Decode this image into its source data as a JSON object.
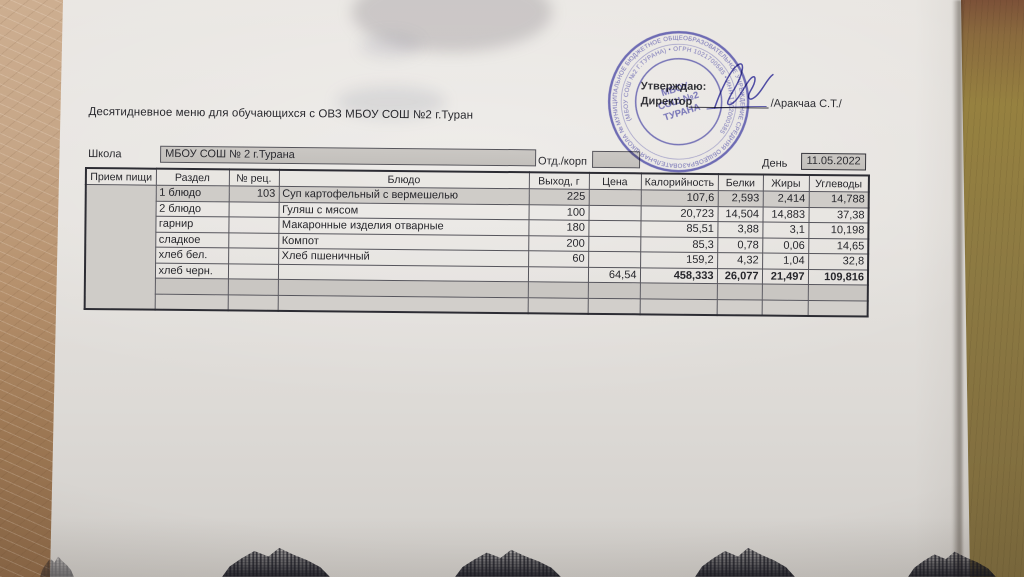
{
  "document": {
    "title": "Десятидневное меню для обучающихся с ОВЗ МБОУ СОШ №2 г.Туран",
    "fields": {
      "school_label": "Школа",
      "school_value": "МБОУ СОШ № 2 г.Турана",
      "dept_label": "Отд./корп",
      "dept_value": "",
      "day_label": "День",
      "day_value": "11.05.2022"
    },
    "approval": {
      "approve_label": "Утверждаю:",
      "director_label": "Директор",
      "signature_name": "/Аракчаа С.Т./"
    },
    "stamp": {
      "ring_text_outer": "МУНИЦИПАЛЬНОЕ БЮДЖЕТНОЕ ОБЩЕОБРАЗОВАТЕЛЬНОЕ УЧРЕЖДЕНИЕ СРЕДНЯЯ ОБЩЕОБРАЗОВАТЕЛЬНАЯ ШКОЛА № 2 ГОРОДА ТУРАНА",
      "ring_text_inner": "(МБОУ СОШ №2 Г.ТУРАНА) • ОГРН 1021700585 • ИНН 1702000385",
      "center_line1": "МБОУ",
      "center_line2": "СОШ №2",
      "center_line3": "ТУРАНА",
      "ink_color": "#4d4aa6"
    },
    "table": {
      "headers": [
        "Прием пищи",
        "Раздел",
        "№ рец.",
        "Блюдо",
        "Выход, г",
        "Цена",
        "Калорийность",
        "Белки",
        "Жиры",
        "Углеводы"
      ],
      "rows": [
        {
          "razdel": "1 блюдо",
          "rec": "103",
          "dish": "Суп картофельный с вермешелью",
          "out": "225",
          "price": "",
          "kcal": "107,6",
          "protein": "2,593",
          "fat": "2,414",
          "carbs": "14,788"
        },
        {
          "razdel": "2 блюдо",
          "rec": "",
          "dish": "Гуляш с мясом",
          "out": "100",
          "price": "",
          "kcal": "20,723",
          "protein": "14,504",
          "fat": "14,883",
          "carbs": "37,38"
        },
        {
          "razdel": "гарнир",
          "rec": "",
          "dish": "Макаронные изделия отварные",
          "out": "180",
          "price": "",
          "kcal": "85,51",
          "protein": "3,88",
          "fat": "3,1",
          "carbs": "10,198"
        },
        {
          "razdel": "сладкое",
          "rec": "",
          "dish": "Компот",
          "out": "200",
          "price": "",
          "kcal": "85,3",
          "protein": "0,78",
          "fat": "0,06",
          "carbs": "14,65"
        },
        {
          "razdel": "хлеб бел.",
          "rec": "",
          "dish": "Хлеб пшеничный",
          "out": "60",
          "price": "",
          "kcal": "159,2",
          "protein": "4,32",
          "fat": "1,04",
          "carbs": "32,8"
        },
        {
          "razdel": "хлеб черн.",
          "rec": "",
          "dish": "",
          "out": "",
          "price": "64,54",
          "kcal": "458,333",
          "protein": "26,077",
          "fat": "21,497",
          "carbs": "109,816"
        },
        {
          "razdel": "",
          "rec": "",
          "dish": "",
          "out": "",
          "price": "",
          "kcal": "",
          "protein": "",
          "fat": "",
          "carbs": ""
        },
        {
          "razdel": "",
          "rec": "",
          "dish": "",
          "out": "",
          "price": "",
          "kcal": "",
          "protein": "",
          "fat": "",
          "carbs": ""
        }
      ]
    }
  }
}
